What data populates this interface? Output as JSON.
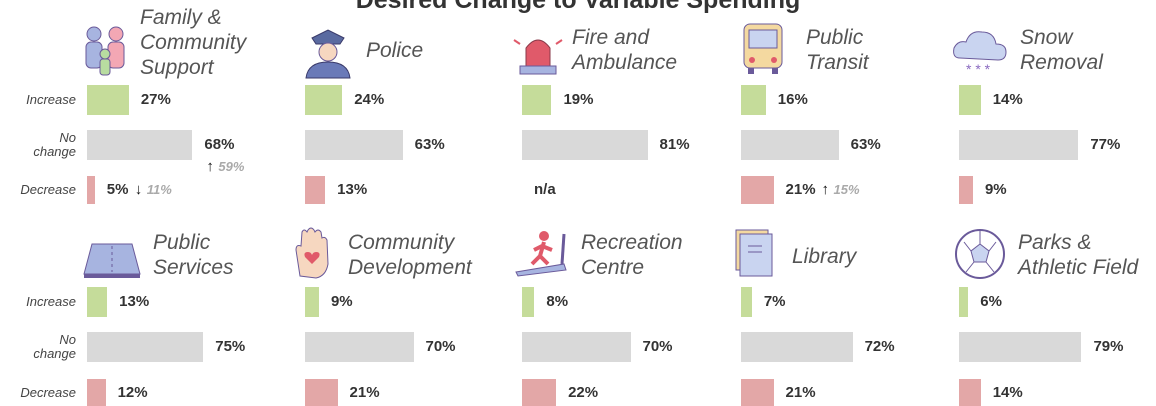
{
  "chart_data": {
    "type": "bar",
    "title": "Desired Change to Variable Spending",
    "row_labels": [
      "Increase",
      "No change",
      "Decrease"
    ],
    "colors": [
      "#c5dc9a",
      "#d9d9d9",
      "#e3a7a7"
    ],
    "xlim": [
      0,
      100
    ],
    "panels": [
      {
        "name": "Family &\nCommunity\nSupport",
        "values": [
          27,
          68,
          5
        ],
        "value_labels": [
          "27%",
          "68%",
          "5%"
        ],
        "notes": [
          null,
          {
            "arrow": "↑",
            "value": 59,
            "label": "59%"
          },
          {
            "arrow": "↓",
            "value": 11,
            "label": "11%"
          }
        ]
      },
      {
        "name": "Police",
        "values": [
          24,
          63,
          13
        ],
        "value_labels": [
          "24%",
          "63%",
          "13%"
        ]
      },
      {
        "name": "Fire and\nAmbulance",
        "values": [
          19,
          81,
          null
        ],
        "value_labels": [
          "19%",
          "81%",
          "n/a"
        ]
      },
      {
        "name": "Public\nTransit",
        "values": [
          16,
          63,
          21
        ],
        "value_labels": [
          "16%",
          "63%",
          "21%"
        ],
        "notes": [
          null,
          null,
          {
            "arrow": "↑",
            "value": 15,
            "label": "15%"
          }
        ]
      },
      {
        "name": "Snow\nRemoval",
        "values": [
          14,
          77,
          9
        ],
        "value_labels": [
          "14%",
          "77%",
          "9%"
        ]
      },
      {
        "name": "Public\nServices",
        "values": [
          13,
          75,
          12
        ],
        "value_labels": [
          "13%",
          "75%",
          "12%"
        ]
      },
      {
        "name": "Community\nDevelopment",
        "values": [
          9,
          70,
          21
        ],
        "value_labels": [
          "9%",
          "70%",
          "21%"
        ]
      },
      {
        "name": "Recreation\nCentre",
        "values": [
          8,
          70,
          22
        ],
        "value_labels": [
          "8%",
          "70%",
          "22%"
        ]
      },
      {
        "name": "Library",
        "values": [
          7,
          72,
          21
        ],
        "value_labels": [
          "7%",
          "72%",
          "21%"
        ]
      },
      {
        "name": "Parks &\nAthletic Field",
        "values": [
          6,
          79,
          14
        ],
        "value_labels": [
          "6%",
          "79%",
          "14%"
        ]
      }
    ]
  }
}
